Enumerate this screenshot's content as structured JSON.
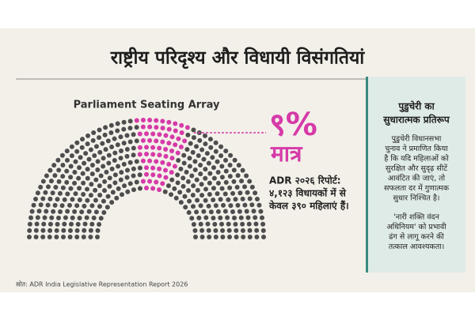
{
  "header": {
    "title": "राष्ट्रीय परिदृश्य और विधायी विसंगतियां"
  },
  "seating": {
    "label": "Parliament Seating Array"
  },
  "highlight": {
    "value": "९%",
    "qualifier": "मात्र",
    "lines": [
      "ADR २०२६ रिपोर्ट:",
      "४,१२३ विधायकों में से",
      "केवल ३९० महिलाएं हैं।"
    ]
  },
  "panel": {
    "heading": [
      "पुडुचेरी का",
      "सुधारात्मक प्रतिरूप"
    ],
    "body": [
      "पुडुचेरी विधानसभा",
      "चुनाव ने प्रमाणित किया",
      "है कि यदि महिलाओं को",
      "सुरक्षित और सुदृढ़ सीटें",
      "आवंटित की जाएं, तो",
      "सफलता दर में गुणात्मक",
      "सुधार निश्चित है।"
    ],
    "note": [
      "'नारी शक्ति वंदन",
      "अधिनियम' को प्रभावी",
      "ढंग से लागू करने की",
      "तत्काल आवश्यकता।"
    ]
  },
  "footer": {
    "source": "स्रोत: ADR India Legislative Representation Report 2026"
  }
}
